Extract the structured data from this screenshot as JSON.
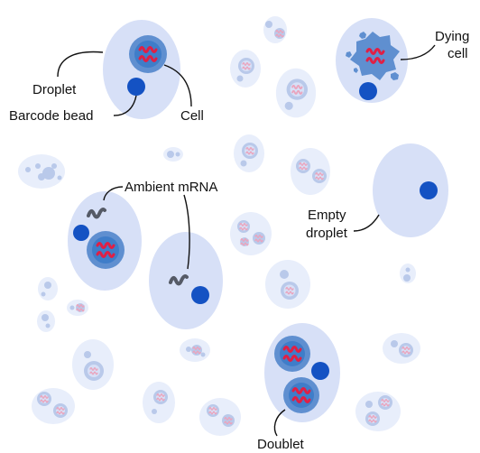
{
  "labels": {
    "droplet": "Droplet",
    "barcode_bead": "Barcode bead",
    "cell": "Cell",
    "dying": "Dying",
    "cell2": "cell",
    "ambient_mrna": "Ambient mRNA",
    "empty": "Empty",
    "droplet2": "droplet",
    "doublet": "Doublet"
  },
  "colors": {
    "droplet_fill": "#d7e0f7",
    "droplet_fill_light": "#e8eefb",
    "cell_fill": "#5f8fd0",
    "cell_fill_faint": "#b9c9ea",
    "nucleus_fill": "#3f7dc9",
    "bead_fill": "#1452c3",
    "mrna_red": "#e01f45",
    "mrna_pink": "#eaa4bd",
    "ambient_gray": "#555a66"
  }
}
